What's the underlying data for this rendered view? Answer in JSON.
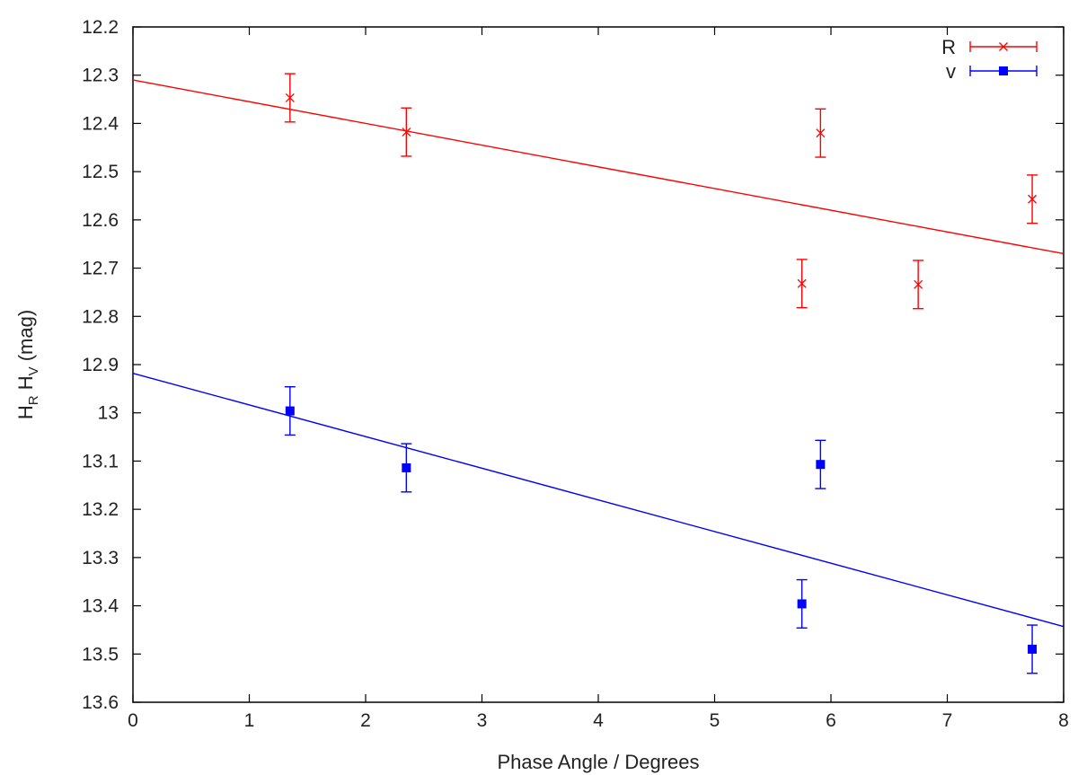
{
  "chart_data": {
    "type": "scatter",
    "title": "",
    "xlabel": "Phase Angle / Degrees",
    "ylabel": {
      "main_1": "H",
      "sub_1": "R",
      "main_2": " H",
      "sub_2": "V",
      "unit": " (mag)"
    },
    "xlim": [
      0,
      8
    ],
    "ylim": [
      12.2,
      13.6
    ],
    "y_inverted": true,
    "x_ticks": [
      "0",
      "1",
      "2",
      "3",
      "4",
      "5",
      "6",
      "7",
      "8"
    ],
    "y_ticks": [
      "12.2",
      "12.3",
      "12.4",
      "12.5",
      "12.6",
      "12.7",
      "12.8",
      "12.9",
      "13",
      "13.1",
      "13.2",
      "13.3",
      "13.4",
      "13.5",
      "13.6"
    ],
    "grid": false,
    "legend_position": "top-right",
    "series": [
      {
        "name": "R",
        "color": "#ff0000",
        "marker": "cross",
        "points": [
          {
            "x": 1.35,
            "y": 12.347,
            "err": 0.05
          },
          {
            "x": 2.35,
            "y": 12.418,
            "err": 0.05
          },
          {
            "x": 5.75,
            "y": 12.732,
            "err": 0.05
          },
          {
            "x": 5.91,
            "y": 12.42,
            "err": 0.05
          },
          {
            "x": 6.75,
            "y": 12.734,
            "err": 0.05
          },
          {
            "x": 7.73,
            "y": 12.557,
            "err": 0.05
          }
        ],
        "fit": {
          "x": [
            0,
            8
          ],
          "y": [
            12.31,
            12.67
          ]
        }
      },
      {
        "name": "v",
        "color": "#0000ff",
        "marker": "square",
        "points": [
          {
            "x": 1.35,
            "y": 12.996,
            "err": 0.05
          },
          {
            "x": 2.35,
            "y": 13.114,
            "err": 0.05
          },
          {
            "x": 5.75,
            "y": 13.396,
            "err": 0.05
          },
          {
            "x": 5.91,
            "y": 13.107,
            "err": 0.05
          },
          {
            "x": 7.73,
            "y": 13.49,
            "err": 0.05
          }
        ],
        "fit": {
          "x": [
            0,
            8
          ],
          "y": [
            12.918,
            13.443
          ]
        }
      }
    ]
  }
}
